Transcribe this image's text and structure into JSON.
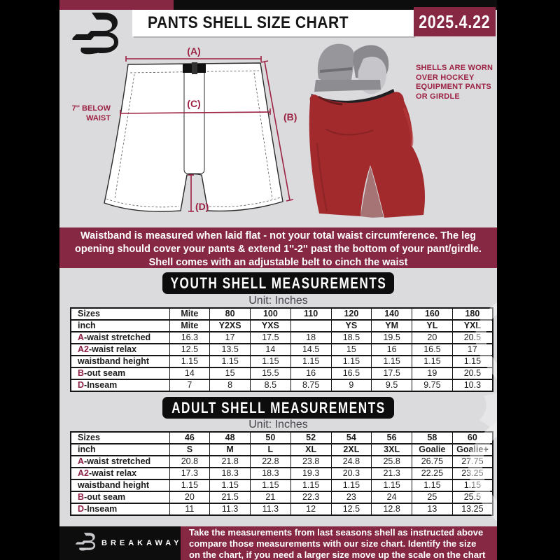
{
  "header": {
    "title": "PANTS SHELL SIZE CHART",
    "date": "2025.4.22"
  },
  "diagram": {
    "label_a": "(A)",
    "label_b": "(B)",
    "label_c": "(C)",
    "label_d": "(D)",
    "below_waist_line1": "7'' BELOW",
    "below_waist_line2": "WAIST",
    "side_note_lines": [
      "SHELLS ARE WORN",
      "OVER HOCKEY",
      "EQUIPMENT PANTS",
      "OR GIRDLE"
    ]
  },
  "notice": {
    "lines": [
      "Waistband is measured when laid flat - not your total waist circumference. The leg",
      "opening should cover your pants & extend 1''-2'' past the bottom of your pant/girdle.",
      "Shell comes with an adjustable belt to cinch the waist"
    ]
  },
  "youth": {
    "heading": "YOUTH SHELL MEASUREMENTS",
    "unit": "Unit: Inches",
    "table": {
      "header_rows": [
        {
          "label": "Sizes",
          "values": [
            "Mite",
            "80",
            "100",
            "110",
            "120",
            "140",
            "160",
            "180"
          ]
        },
        {
          "label": "inch",
          "values": [
            "Mite",
            "Y2XS",
            "YXS",
            "",
            "YS",
            "YM",
            "YL",
            "YXL"
          ]
        }
      ],
      "rows": [
        {
          "prefix": "A",
          "label": "-waist stretched",
          "values": [
            "16.3",
            "17",
            "17.5",
            "18",
            "18.5",
            "19.5",
            "20",
            "20.5"
          ]
        },
        {
          "prefix": "A2",
          "label": "-waist relax",
          "values": [
            "12.5",
            "13.5",
            "14",
            "14.5",
            "15",
            "16",
            "16.5",
            "17"
          ]
        },
        {
          "prefix": "",
          "label": "waistband height",
          "values": [
            "1.15",
            "1.15",
            "1.15",
            "1.15",
            "1.15",
            "1.15",
            "1.15",
            "1.15"
          ]
        },
        {
          "prefix": "B",
          "label": "-out seam",
          "values": [
            "14",
            "15",
            "15.5",
            "16",
            "16.5",
            "17.5",
            "19",
            "20.5"
          ]
        },
        {
          "prefix": "D",
          "label": "-Inseam",
          "values": [
            "7",
            "8",
            "8.5",
            "8.75",
            "9",
            "9.5",
            "9.75",
            "10.3"
          ]
        }
      ]
    }
  },
  "adult": {
    "heading": "ADULT SHELL MEASUREMENTS",
    "unit": "Unit: Inches",
    "table": {
      "header_rows": [
        {
          "label": "Sizes",
          "values": [
            "46",
            "48",
            "50",
            "52",
            "54",
            "56",
            "58",
            "60"
          ]
        },
        {
          "label": "inch",
          "values": [
            "S",
            "M",
            "L",
            "XL",
            "2XL",
            "3XL",
            "Goalie",
            "Goalie+"
          ]
        }
      ],
      "rows": [
        {
          "prefix": "A",
          "label": "-waist stretched",
          "values": [
            "20.8",
            "21.8",
            "22.8",
            "23.8",
            "24.8",
            "25.8",
            "26.75",
            "27.75"
          ]
        },
        {
          "prefix": "A2",
          "label": "-waist relax",
          "values": [
            "17.3",
            "18.3",
            "18.3",
            "19.3",
            "20.3",
            "21.3",
            "22.25",
            "23.25"
          ]
        },
        {
          "prefix": "",
          "label": "waistband height",
          "values": [
            "1.15",
            "1.15",
            "1.15",
            "1.15",
            "1.15",
            "1.15",
            "1.15",
            "1.15"
          ]
        },
        {
          "prefix": "B",
          "label": "-out seam",
          "values": [
            "20",
            "21.5",
            "21",
            "22.3",
            "23",
            "24",
            "25",
            "25.5"
          ]
        },
        {
          "prefix": "D",
          "label": "-Inseam",
          "values": [
            "11",
            "11.3",
            "11.3",
            "12",
            "12.5",
            "12.8",
            "13",
            "13.25"
          ]
        }
      ]
    }
  },
  "footer": {
    "brand": "BREAKAWAY",
    "lines": [
      "Take the measurements from last seasons shell as instructed above",
      "compare those measurements  with our size chart. Identify the size",
      "on the chart, if you need a larger size move up the scale on the chart"
    ]
  },
  "colors": {
    "maroon_block": "#862744",
    "maroon_text": "#9c2243",
    "page_bg": "#dbdbde",
    "banner_black": "#0d0d0d",
    "shell_red": "#a22a2c"
  }
}
